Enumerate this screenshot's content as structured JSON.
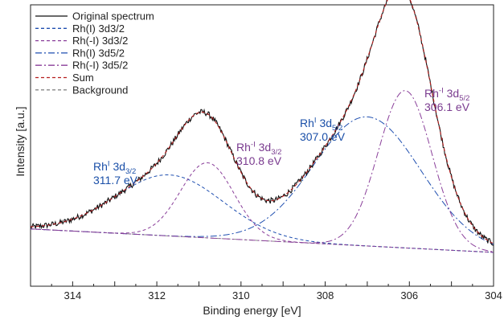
{
  "chart_data": {
    "type": "line",
    "title": "",
    "xlabel": "Binding energy [eV]",
    "ylabel": "Intensity [a.u.]",
    "x_reversed": true,
    "xlim": [
      315,
      304
    ],
    "ylim": [
      0,
      1
    ],
    "y_ticks_labelled": false,
    "x_ticks": [
      314,
      312,
      310,
      308,
      306,
      304
    ],
    "legend_position": "top-left",
    "series": [
      {
        "name": "Original spectrum",
        "color": "#111111",
        "style": "solid",
        "noisy": true
      },
      {
        "name": "Rh(I) 3d3/2",
        "color": "#1f4fb0",
        "style": "dashed",
        "center": 311.7,
        "fwhm": 3.0,
        "height": 0.26
      },
      {
        "name": "Rh(-I) 3d3/2",
        "color": "#8a3f9a",
        "style": "dashed",
        "center": 310.8,
        "fwhm": 1.5,
        "height": 0.32
      },
      {
        "name": "Rh(I) 3d5/2",
        "color": "#1f4fb0",
        "style": "dashdot",
        "center": 307.0,
        "fwhm": 3.0,
        "height": 0.55
      },
      {
        "name": "Rh(-I) 3d5/2",
        "color": "#8a3f9a",
        "style": "dashdot",
        "center": 306.1,
        "fwhm": 1.5,
        "height": 0.67
      },
      {
        "name": "Sum",
        "color": "#b51f1f",
        "style": "dashed"
      },
      {
        "name": "Background",
        "color": "#888888",
        "style": "dashed",
        "start": 0.155,
        "end": 0.055
      }
    ],
    "annotations": [
      {
        "id": "rh1-32",
        "sym": "Rh",
        "sup": "I",
        "orb": "3d",
        "sub": "3/2",
        "value": "311.7 eV",
        "color": "#1a4fa8"
      },
      {
        "id": "rhm1-32",
        "sym": "Rh",
        "sup": "-I",
        "orb": "3d",
        "sub": "3/2",
        "value": "310.8 eV",
        "color": "#7a3b8f"
      },
      {
        "id": "rh1-52",
        "sym": "Rh",
        "sup": "I",
        "orb": "3d",
        "sub": "5/2",
        "value": "307.0 eV",
        "color": "#1a4fa8"
      },
      {
        "id": "rhm1-52",
        "sym": "Rh",
        "sup": "-I",
        "orb": "3d",
        "sub": "5/2",
        "value": "306.1 eV",
        "color": "#7a3b8f"
      }
    ]
  }
}
